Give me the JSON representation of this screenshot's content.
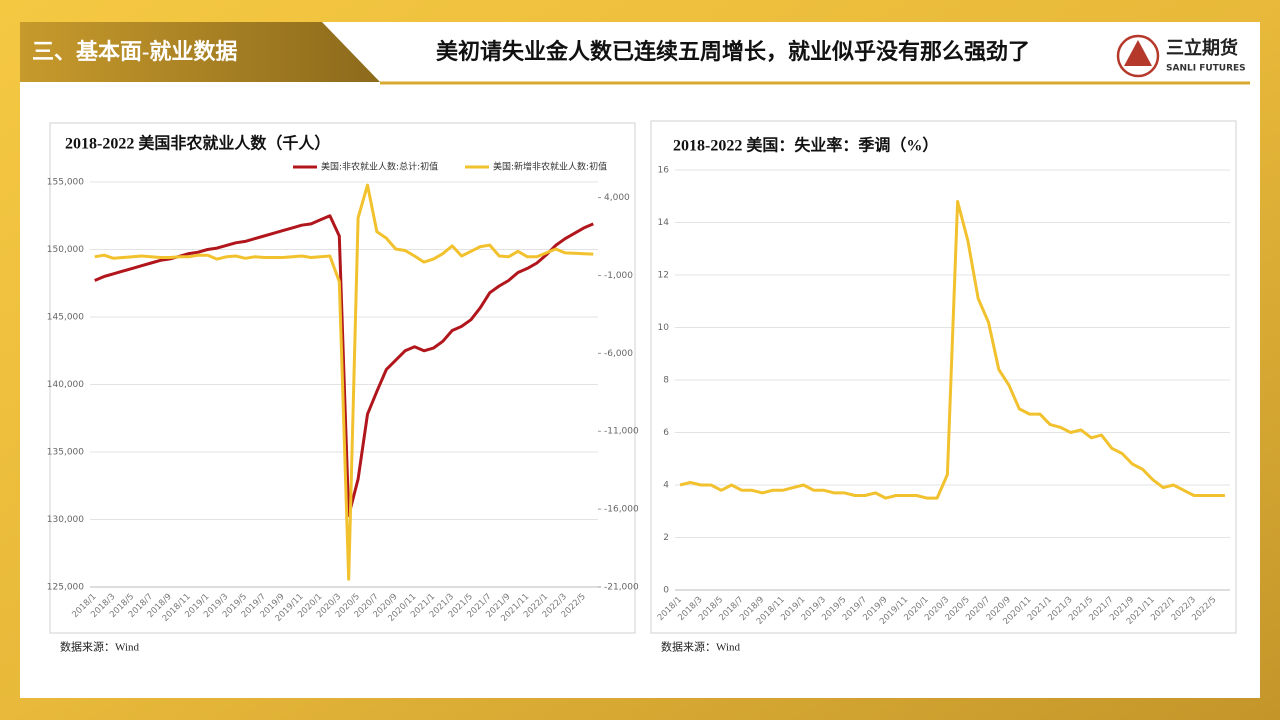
{
  "header": {
    "section": "三、基本面-就业数据",
    "title": "美初请失业金人数已连续五周增长，就业似乎没有那么强劲了",
    "logo_cn": "三立期货",
    "logo_en": "SANLI FUTURES"
  },
  "chart_data": [
    {
      "type": "line",
      "title": "2018-2022 美国非农就业人数（千人）",
      "source": "数据来源：Wind",
      "categories": [
        "2018/1",
        null,
        "2018/3",
        null,
        "2018/5",
        null,
        "2018/7",
        null,
        "2018/9",
        null,
        "2018/11",
        null,
        "2019/1",
        null,
        "2019/3",
        null,
        "2019/5",
        null,
        "2019/7",
        null,
        "2019/9",
        null,
        "2019/11",
        null,
        "2020/1",
        null,
        "2020/3",
        null,
        "2020/5",
        null,
        "2020/7",
        null,
        "2020/9",
        null,
        "2020/11",
        null,
        "2021/1",
        null,
        "2021/3",
        null,
        "2021/5",
        null,
        "2021/7",
        null,
        "2021/9",
        null,
        "2021/11",
        null,
        "2022/1",
        null,
        "2022/3",
        null,
        "2022/5",
        null
      ],
      "series": [
        {
          "name": "美国:非农就业人数:总计:初值",
          "color": "#b0161b",
          "values": [
            147700,
            148000,
            148200,
            148400,
            148600,
            148800,
            149000,
            149200,
            149300,
            149500,
            149700,
            149800,
            150000,
            150100,
            150300,
            150500,
            150600,
            150800,
            151000,
            151200,
            151400,
            151600,
            151800,
            151900,
            152200,
            152500,
            151000,
            130300,
            133000,
            137800,
            139500,
            141100,
            141800,
            142500,
            142800,
            142500,
            142700,
            143200,
            144000,
            144300,
            144800,
            145700,
            146800,
            147300,
            147700,
            148300,
            148600,
            149000,
            149600,
            150300,
            150800,
            151200,
            151600,
            151900
          ]
        },
        {
          "name": "美国:新增非农就业人数:初值",
          "color": "#f2c12e",
          "axis": "y2",
          "values": [
            200,
            300,
            100,
            150,
            200,
            250,
            200,
            150,
            150,
            200,
            200,
            300,
            300,
            50,
            200,
            250,
            100,
            200,
            150,
            150,
            150,
            200,
            250,
            150,
            200,
            250,
            -1400,
            -20500,
            2700,
            4800,
            1800,
            1400,
            700,
            600,
            250,
            -140,
            50,
            400,
            900,
            250,
            550,
            850,
            950,
            250,
            200,
            550,
            200,
            200,
            450,
            700,
            450,
            430,
            400,
            370
          ]
        }
      ],
      "ylim": [
        125000,
        155000
      ],
      "yticks": [
        {
          "value": 125000,
          "label": "125,000"
        },
        {
          "value": 130000,
          "label": "130,000"
        },
        {
          "value": 135000,
          "label": "135,000"
        },
        {
          "value": 140000,
          "label": "140,000"
        },
        {
          "value": 145000,
          "label": "145,000"
        },
        {
          "value": 150000,
          "label": "150,000"
        },
        {
          "value": 155000,
          "label": "155,000"
        }
      ],
      "y2lim": [
        -21000,
        5000
      ],
      "y2ticks": [
        {
          "value": -21000,
          "label": "-21,000"
        },
        {
          "value": -16000,
          "label": "-16,000"
        },
        {
          "value": -11000,
          "label": "-11,000"
        },
        {
          "value": -6000,
          "label": "-6,000"
        },
        {
          "value": -1000,
          "label": "-1,000"
        },
        {
          "value": 4000,
          "label": "4,000"
        }
      ],
      "grid": true,
      "legend": "top"
    },
    {
      "type": "line",
      "title": "2018-2022 美国：失业率：季调（%）",
      "source": "数据来源：Wind",
      "categories": [
        "2018/1",
        null,
        "2018/3",
        null,
        "2018/5",
        null,
        "2018/7",
        null,
        "2018/9",
        null,
        "2018/11",
        null,
        "2019/1",
        null,
        "2019/3",
        null,
        "2019/5",
        null,
        "2019/7",
        null,
        "2019/9",
        null,
        "2019/11",
        null,
        "2020/1",
        null,
        "2020/3",
        null,
        "2020/5",
        null,
        "2020/7",
        null,
        "2020/9",
        null,
        "2020/11",
        null,
        "2021/1",
        null,
        "2021/3",
        null,
        "2021/5",
        null,
        "2021/7",
        null,
        "2021/9",
        null,
        "2021/11",
        null,
        "2022/1",
        null,
        "2022/3",
        null,
        "2022/5",
        null
      ],
      "color": "#f2c12e",
      "values": [
        4.0,
        4.1,
        4.0,
        4.0,
        3.8,
        4.0,
        3.8,
        3.8,
        3.7,
        3.8,
        3.8,
        3.9,
        4.0,
        3.8,
        3.8,
        3.7,
        3.7,
        3.6,
        3.6,
        3.7,
        3.5,
        3.6,
        3.6,
        3.6,
        3.5,
        3.5,
        4.4,
        14.8,
        13.3,
        11.1,
        10.2,
        8.4,
        7.8,
        6.9,
        6.7,
        6.7,
        6.3,
        6.2,
        6.0,
        6.1,
        5.8,
        5.9,
        5.4,
        5.2,
        4.8,
        4.6,
        4.2,
        3.9,
        4.0,
        3.8,
        3.6,
        3.6,
        3.6,
        3.6
      ],
      "ylim": [
        0,
        16
      ],
      "yticks": [
        0,
        2,
        4,
        6,
        8,
        10,
        12,
        14,
        16
      ],
      "grid": true
    }
  ]
}
